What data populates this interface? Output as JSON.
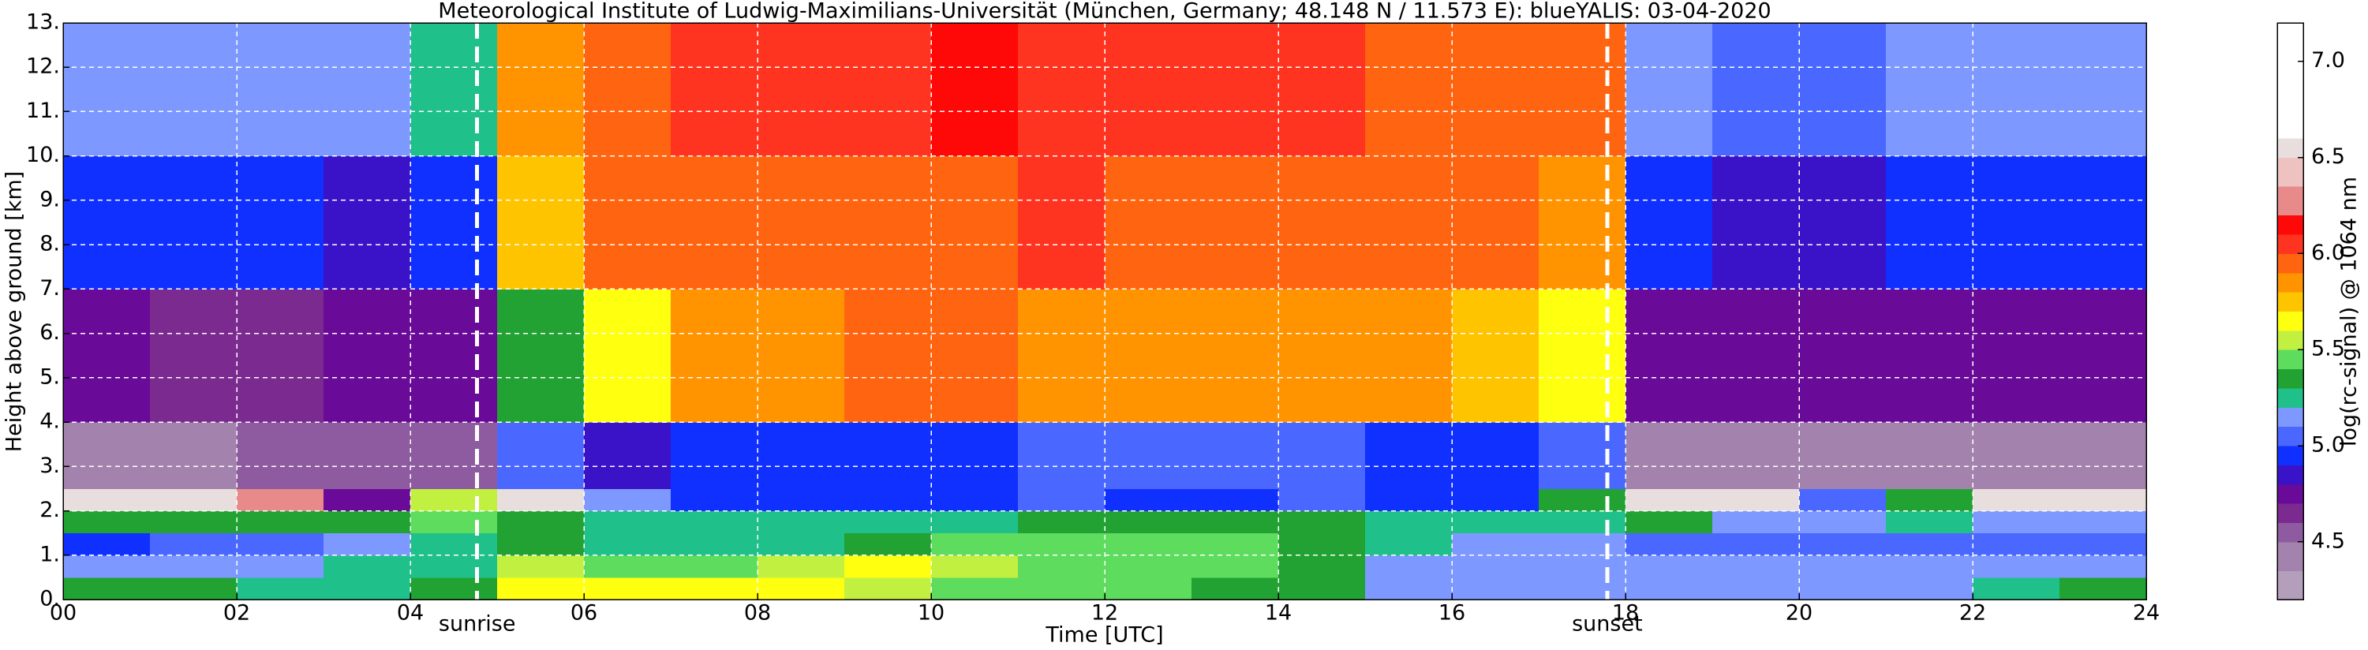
{
  "chart_data": {
    "type": "heatmap",
    "title": "Meteorological Institute of Ludwig-Maximilians-Universität (München, Germany; 48.148 N / 11.573 E):    blueYALIS: 03-04-2020",
    "xlabel": "Time [UTC]",
    "ylabel": "Height above ground [km]",
    "xlim": [
      0,
      24
    ],
    "ylim": [
      0,
      13
    ],
    "xticks": [
      {
        "value": 0,
        "label": "00"
      },
      {
        "value": 2,
        "label": "02"
      },
      {
        "value": 4,
        "label": "04"
      },
      {
        "value": 6,
        "label": "06"
      },
      {
        "value": 8,
        "label": "08"
      },
      10,
      12,
      14,
      16,
      18,
      20,
      22,
      24
    ],
    "yticks": [
      {
        "value": 0,
        "label": "0."
      },
      {
        "value": 1,
        "label": "1."
      },
      {
        "value": 2,
        "label": "2."
      },
      {
        "value": 3,
        "label": "3."
      },
      {
        "value": 4,
        "label": "4."
      },
      {
        "value": 5,
        "label": "5."
      },
      {
        "value": 6,
        "label": "6."
      },
      {
        "value": 7,
        "label": "7."
      },
      {
        "value": 8,
        "label": "8."
      },
      {
        "value": 9,
        "label": "9."
      },
      {
        "value": 10,
        "label": "10."
      },
      {
        "value": 11,
        "label": "11."
      },
      {
        "value": 12,
        "label": "12."
      },
      {
        "value": 13,
        "label": "13."
      }
    ],
    "grid": true,
    "xbins": [
      0,
      1,
      2,
      3,
      4,
      5,
      6,
      7,
      8,
      9,
      10,
      11,
      12,
      13,
      14,
      15,
      16,
      17,
      18,
      19,
      20,
      21,
      22,
      23,
      24
    ],
    "ybins": [
      0,
      0.5,
      1,
      1.5,
      2,
      2.5,
      4,
      7,
      10,
      13
    ],
    "z": [
      [
        5.3,
        5.3,
        5.2,
        5.2,
        5.3,
        5.6,
        5.6,
        5.6,
        5.6,
        5.5,
        5.4,
        5.4,
        5.4,
        5.3,
        5.3,
        5.1,
        5.1,
        5.1,
        5.1,
        5.1,
        5.1,
        5.1,
        5.2,
        5.3
      ],
      [
        5.1,
        5.1,
        5.1,
        5.2,
        5.2,
        5.5,
        5.4,
        5.4,
        5.5,
        5.6,
        5.5,
        5.4,
        5.4,
        5.4,
        5.3,
        5.1,
        5.1,
        5.1,
        5.1,
        5.1,
        5.1,
        5.1,
        5.1,
        5.1
      ],
      [
        4.95,
        5.0,
        5.0,
        5.1,
        5.2,
        5.3,
        5.2,
        5.2,
        5.2,
        5.3,
        5.4,
        5.4,
        5.4,
        5.4,
        5.3,
        5.2,
        5.1,
        5.1,
        5.0,
        5.0,
        5.05,
        5.0,
        5.0,
        5.05
      ],
      [
        5.3,
        5.35,
        5.3,
        5.3,
        5.4,
        5.3,
        5.2,
        5.2,
        5.2,
        5.2,
        5.2,
        5.3,
        5.3,
        5.3,
        5.3,
        5.2,
        5.2,
        5.2,
        5.3,
        5.1,
        5.1,
        5.2,
        5.1,
        5.1
      ],
      [
        6.55,
        6.55,
        6.3,
        4.7,
        5.5,
        6.55,
        5.1,
        4.9,
        4.9,
        4.9,
        4.9,
        5.0,
        4.9,
        4.9,
        5.0,
        4.9,
        4.9,
        5.3,
        6.55,
        6.55,
        5.0,
        5.3,
        6.55,
        6.55
      ],
      [
        4.35,
        4.35,
        4.5,
        4.55,
        4.5,
        5.0,
        4.8,
        4.9,
        4.9,
        4.9,
        4.9,
        5.0,
        5.0,
        5.0,
        5.0,
        4.9,
        4.9,
        5.0,
        4.4,
        4.4,
        4.4,
        4.4,
        4.4,
        4.4
      ],
      [
        4.7,
        4.65,
        4.65,
        4.7,
        4.7,
        5.3,
        5.6,
        5.8,
        5.85,
        5.9,
        5.9,
        5.85,
        5.85,
        5.8,
        5.8,
        5.8,
        5.75,
        5.6,
        4.75,
        4.75,
        4.7,
        4.7,
        4.75,
        4.75
      ],
      [
        4.9,
        4.9,
        4.9,
        4.85,
        4.95,
        5.7,
        5.9,
        5.9,
        5.95,
        5.95,
        5.95,
        6.0,
        5.95,
        5.95,
        5.95,
        5.9,
        5.9,
        5.8,
        4.9,
        4.85,
        4.85,
        4.9,
        4.9,
        4.9
      ],
      [
        5.15,
        5.1,
        5.1,
        5.1,
        5.2,
        5.8,
        5.95,
        6.0,
        6.0,
        6.05,
        6.15,
        6.05,
        6.0,
        6.0,
        6.0,
        5.95,
        5.95,
        5.9,
        5.1,
        5.05,
        5.05,
        5.1,
        5.1,
        5.1
      ]
    ],
    "annotations": [
      {
        "text": "sunrise",
        "x": 4.77
      },
      {
        "text": "sunset",
        "x": 17.79
      }
    ],
    "colorbar": {
      "label": "log(rc-signal) @ 1064 nm",
      "ylim": [
        4.2,
        7.2
      ],
      "yticks": [
        4.5,
        {
          "value": 5,
          "label": "5.0"
        },
        5.5,
        {
          "value": 6,
          "label": "6.0"
        },
        6.5,
        {
          "value": 7,
          "label": "7.0"
        }
      ],
      "levels": [
        4.2,
        4.35,
        4.5,
        4.6,
        4.7,
        4.8,
        4.9,
        5.0,
        5.1,
        5.2,
        5.3,
        5.4,
        5.5,
        5.6,
        5.7,
        5.8,
        5.9,
        6.0,
        6.1,
        6.2,
        6.35,
        6.5,
        6.6,
        7.2
      ],
      "colors": [
        "#b39fbb",
        "#a383ad",
        "#8e5ba0",
        "#7b2a8f",
        "#6a0a98",
        "#3a12c8",
        "#1030ff",
        "#4a68ff",
        "#7d98ff",
        "#20c08a",
        "#22a232",
        "#5edc5e",
        "#c2f040",
        "#ffff10",
        "#ffc400",
        "#ff9400",
        "#ff6410",
        "#ff3420",
        "#ff0808",
        "#e88a8a",
        "#efc2c2",
        "#e8dede",
        "#ffffff"
      ]
    }
  }
}
